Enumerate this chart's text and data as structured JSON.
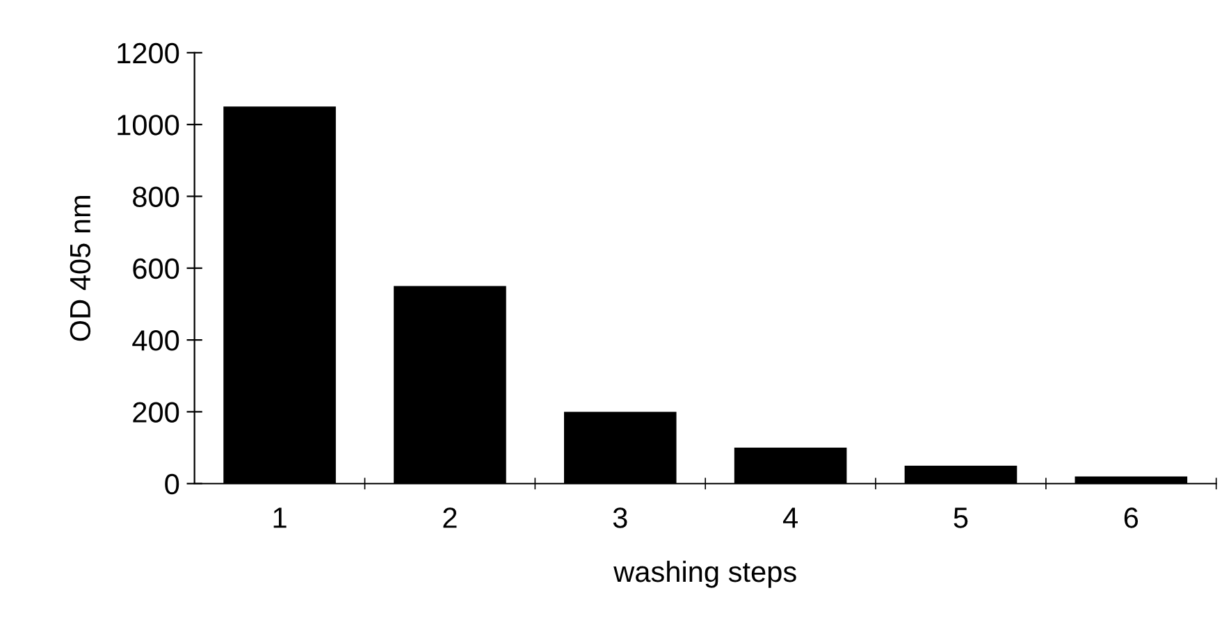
{
  "chart_data": {
    "type": "bar",
    "xlabel": "washing steps",
    "ylabel": "OD 405 nm",
    "categories": [
      "1",
      "2",
      "3",
      "4",
      "5",
      "6"
    ],
    "values": [
      1050,
      550,
      200,
      100,
      50,
      20
    ],
    "color": "#000000",
    "ylim": [
      0,
      1200
    ],
    "yticks": [
      0,
      200,
      400,
      600,
      800,
      1000,
      1200
    ],
    "grid": false,
    "legend": false
  }
}
